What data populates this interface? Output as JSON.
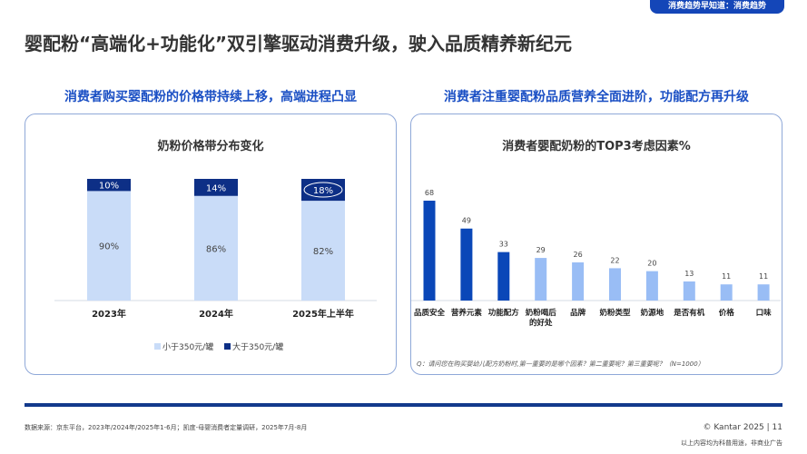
{
  "badge": "消费趋势早知道：消费趋势",
  "title": "婴配粉“高端化+功能化”双引擎驱动消费升级，驶入品质精养新纪元",
  "left": {
    "subtitle": "消费者购买婴配粉的价格带持续上移，高端进程凸显"
  },
  "right": {
    "subtitle": "消费者注重婴配粉品质营养全面进阶，功能配方再升级"
  },
  "colors": {
    "light": "#c9dcf8",
    "dark": "#0d2f86",
    "bar_dark": "#0a47b8",
    "bar_light": "#99bdf5",
    "accent": "#1a4fc4"
  },
  "chart_data": [
    {
      "type": "bar",
      "stacked": true,
      "title": "奶粉价格带分布变化",
      "categories": [
        "2023年",
        "2024年",
        "2025年上半年"
      ],
      "series": [
        {
          "name": "小于350元/罐",
          "values": [
            90,
            86,
            82
          ],
          "labels": [
            "90%",
            "86%",
            "82%"
          ]
        },
        {
          "name": "大于350元/罐",
          "values": [
            10,
            14,
            18
          ],
          "labels": [
            "10%",
            "14%",
            "18%"
          ]
        }
      ],
      "ylim": [
        0,
        100
      ],
      "legend": "bottom",
      "highlight": "18%"
    },
    {
      "type": "bar",
      "title": "消费者婴配奶粉的TOP3考虑因素%",
      "categories": [
        "品质安全",
        "营养元素",
        "功能配方",
        "奶粉喝后的好处",
        "品牌",
        "奶粉类型",
        "奶源地",
        "是否有机",
        "价格",
        "口味"
      ],
      "values": [
        68,
        49,
        33,
        29,
        26,
        22,
        20,
        13,
        11,
        11
      ],
      "highlighted_top": 3,
      "ylim": [
        0,
        70
      ],
      "footnote": "Q：请问您在购买婴幼儿配方奶粉时,第一重要的是哪个因素？第二重要呢？第三重要呢？（N=1000）"
    }
  ],
  "footer": {
    "source": "数据来源：京东平台，2023年/2024年/2025年1-6月；凯度-母婴消费者定量调研，2025年7月-8月",
    "copyright": "© Kantar 2025 | 11",
    "note": "以上内容均为科普用途，非商业广告"
  }
}
